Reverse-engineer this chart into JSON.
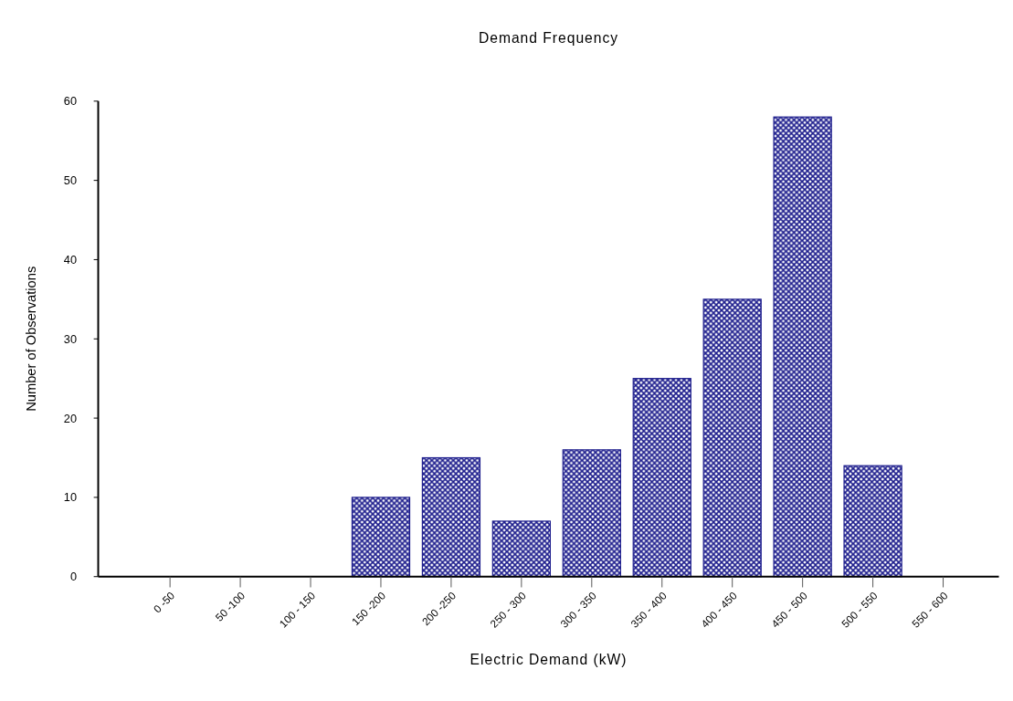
{
  "chart_data": {
    "type": "bar",
    "title": "Demand Frequency",
    "xlabel": "Electric Demand (kW)",
    "ylabel": "Number of Observations",
    "categories": [
      "0 -50",
      "50 -100",
      "100 - 150",
      "150 -200",
      "200 -250",
      "250 - 300",
      "300 - 350",
      "350 - 400",
      "400 - 450",
      "450 - 500",
      "500 - 550",
      "550 - 600"
    ],
    "values": [
      0,
      0,
      0,
      10,
      15,
      7,
      16,
      25,
      35,
      58,
      14,
      0
    ],
    "color": "#1c1c8c",
    "ylim": [
      0,
      60
    ],
    "yticks": [
      0,
      10,
      20,
      30,
      40,
      50,
      60
    ],
    "grid": false
  }
}
